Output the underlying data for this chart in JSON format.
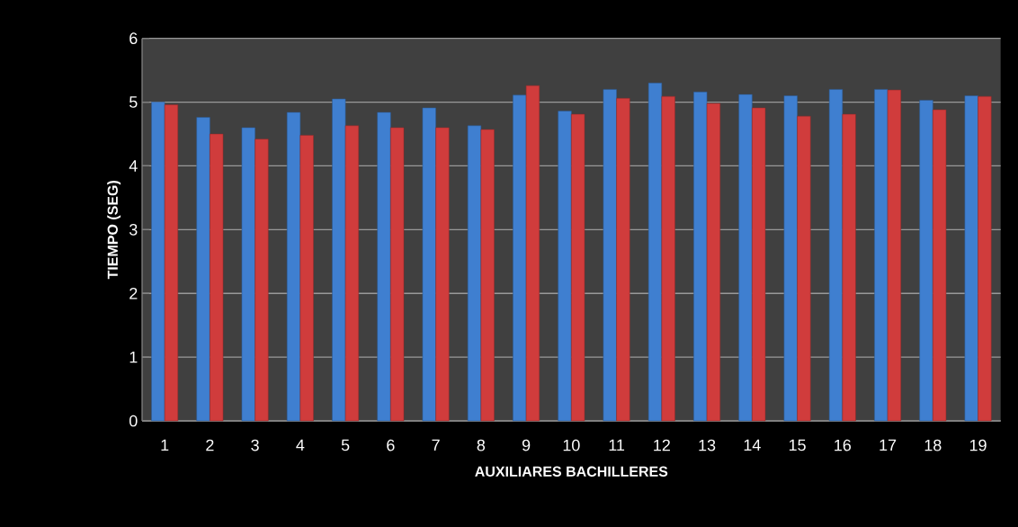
{
  "chart_data": {
    "type": "bar",
    "xlabel": "AUXILIARES BACHILLERES",
    "ylabel": "TIEMPO (SEG)",
    "categories": [
      "1",
      "2",
      "3",
      "4",
      "5",
      "6",
      "7",
      "8",
      "9",
      "10",
      "11",
      "12",
      "13",
      "14",
      "15",
      "16",
      "17",
      "18",
      "19"
    ],
    "series": [
      {
        "color": "#3f7fd0",
        "values": [
          5.0,
          4.76,
          4.6,
          4.84,
          5.05,
          4.84,
          4.91,
          4.63,
          5.11,
          4.86,
          5.2,
          5.3,
          5.16,
          5.12,
          5.1,
          5.2,
          5.2,
          5.03,
          5.1
        ]
      },
      {
        "color": "#d03c3c",
        "values": [
          4.96,
          4.5,
          4.42,
          4.48,
          4.63,
          4.6,
          4.6,
          4.57,
          5.26,
          4.81,
          5.06,
          5.09,
          4.98,
          4.91,
          4.78,
          4.81,
          5.19,
          4.88,
          5.09
        ]
      }
    ],
    "ylim": [
      0,
      6
    ],
    "yticks": [
      0,
      1,
      2,
      3,
      4,
      5,
      6
    ],
    "grid": "y"
  }
}
